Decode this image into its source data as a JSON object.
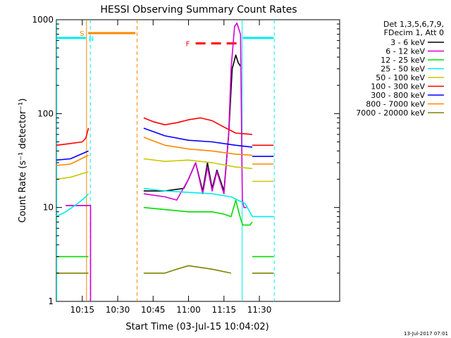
{
  "chart_data": {
    "type": "line",
    "title": "HESSI Observing Summary Count Rates",
    "xlabel": "Start Time (03-Jul-15 10:04:02)",
    "ylabel": "Count Rate (s⁻¹ detector⁻¹)",
    "ylog": true,
    "ylim": [
      1,
      1000
    ],
    "xlim_min": [
      4.03,
      124.0
    ],
    "x_ticks": [
      {
        "t": 15,
        "label": "10:15"
      },
      {
        "t": 30,
        "label": "10:30"
      },
      {
        "t": 45,
        "label": "10:45"
      },
      {
        "t": 60,
        "label": "11:00"
      },
      {
        "t": 75,
        "label": "11:15"
      },
      {
        "t": 90,
        "label": "11:30"
      }
    ],
    "y_ticks": [
      {
        "v": 1,
        "label": "1"
      },
      {
        "v": 10,
        "label": "10"
      },
      {
        "v": 100,
        "label": "100"
      },
      {
        "v": 1000,
        "label": "1000"
      }
    ],
    "legend_header": [
      "Det 1,3,5,6,7,9,",
      "FDecim 1, Att 0"
    ],
    "legend_placement": "right",
    "footer_date": "13-Jul-2017 07:01",
    "series": [
      {
        "name": "3 - 6 keV",
        "color": "#000000",
        "segments": [
          {
            "t": [
              8,
              13,
              17.6
            ],
            "v": [
              10.5,
              10.5,
              10.5
            ]
          },
          {
            "t": [
              41,
              50,
              58,
              60,
              63,
              66,
              68,
              70,
              72,
              75,
              77,
              78.5,
              80,
              81,
              82
            ],
            "v": [
              15,
              15,
              16,
              20,
              30,
              15,
              30,
              16,
              25,
              15,
              60,
              300,
              420,
              350,
              320
            ]
          }
        ]
      },
      {
        "name": "6 - 12 keV",
        "color": "#d400d4",
        "segments": [
          {
            "t": [
              8,
              13,
              16,
              17.6,
              18.5,
              18.5
            ],
            "v": [
              10.5,
              10.5,
              10.5,
              10.5,
              10.5,
              1
            ]
          },
          {
            "t": [
              41,
              50,
              55,
              60,
              63,
              66,
              68,
              70,
              72,
              75,
              77,
              78,
              79.5,
              80.5,
              82,
              82.8,
              83.5,
              84.5
            ],
            "v": [
              14,
              13,
              12,
              20,
              30,
              14,
              27,
              15,
              24,
              14,
              60,
              300,
              850,
              920,
              700,
              12,
              10,
              10
            ]
          }
        ]
      },
      {
        "name": "12 - 25 keV",
        "color": "#00dd00",
        "segments": [
          {
            "t": [
              4,
              10,
              16,
              17.6
            ],
            "v": [
              3,
              3,
              3,
              3
            ]
          },
          {
            "t": [
              41,
              50,
              60,
              70,
              75,
              78,
              80,
              81.5,
              82.5,
              83,
              86,
              87
            ],
            "v": [
              10,
              9.5,
              9,
              9,
              8.5,
              8,
              12,
              8.5,
              7,
              6.5,
              6.5,
              7
            ]
          },
          {
            "t": [
              87,
              90,
              96
            ],
            "v": [
              3,
              3,
              3
            ]
          }
        ]
      },
      {
        "name": "25 - 50 keV",
        "color": "#00eeee",
        "segments": [
          {
            "t": [
              4,
              8,
              13,
              16.5,
              17.6
            ],
            "v": [
              8,
              9,
              11,
              13,
              14
            ]
          },
          {
            "t": [
              41,
              50,
              60,
              70,
              78,
              84,
              87
            ],
            "v": [
              16,
              15,
              14.5,
              14,
              13,
              11,
              8
            ]
          },
          {
            "t": [
              87,
              96
            ],
            "v": [
              8,
              8
            ]
          }
        ]
      },
      {
        "name": "50 - 100 keV",
        "color": "#c8c800",
        "segments": [
          {
            "t": [
              4,
              10,
              17.6
            ],
            "v": [
              20,
              21,
              24
            ]
          },
          {
            "t": [
              41,
              50,
              60,
              70,
              80,
              87
            ],
            "v": [
              33,
              31,
              32,
              30,
              27,
              26
            ]
          },
          {
            "t": [
              87,
              96
            ],
            "v": [
              19,
              19
            ]
          }
        ]
      },
      {
        "name": "100 - 300 keV",
        "color": "#ff0000",
        "segments": [
          {
            "t": [
              4,
              10,
              15,
              16.5,
              17.6
            ],
            "v": [
              46,
              48,
              50,
              55,
              70
            ]
          },
          {
            "t": [
              41,
              45,
              50,
              55,
              60,
              65,
              70,
              75,
              80,
              87
            ],
            "v": [
              90,
              82,
              76,
              80,
              86,
              90,
              84,
              72,
              62,
              60
            ]
          },
          {
            "t": [
              87,
              96
            ],
            "v": [
              46,
              46
            ]
          }
        ]
      },
      {
        "name": "300 - 800 keV",
        "color": "#0000ff",
        "segments": [
          {
            "t": [
              4,
              10,
              17.6
            ],
            "v": [
              32,
              33,
              40
            ]
          },
          {
            "t": [
              41,
              50,
              60,
              70,
              80,
              87
            ],
            "v": [
              70,
              58,
              52,
              50,
              46,
              44
            ]
          },
          {
            "t": [
              87,
              96
            ],
            "v": [
              35,
              35
            ]
          }
        ]
      },
      {
        "name": "800 - 7000 keV",
        "color": "#ff8800",
        "segments": [
          {
            "t": [
              4,
              10,
              17.6
            ],
            "v": [
              28,
              29,
              36
            ]
          },
          {
            "t": [
              41,
              50,
              60,
              70,
              80,
              87
            ],
            "v": [
              56,
              46,
              42,
              40,
              37,
              36
            ]
          },
          {
            "t": [
              87,
              96
            ],
            "v": [
              29,
              29
            ]
          }
        ]
      },
      {
        "name": "7000 - 20000 keV",
        "color": "#808000",
        "segments": [
          {
            "t": [
              4,
              10,
              17.6
            ],
            "v": [
              2,
              2,
              2
            ]
          },
          {
            "t": [
              41,
              50,
              55,
              60,
              65,
              70,
              78
            ],
            "v": [
              2,
              2,
              2.2,
              2.4,
              2.3,
              2.2,
              2
            ]
          },
          {
            "t": [
              87,
              96
            ],
            "v": [
              2,
              2
            ]
          }
        ]
      }
    ],
    "vlines": [
      {
        "t": 4.2,
        "color": "#00eeee",
        "dashed": false
      },
      {
        "t": 16.8,
        "color": "#ff8800",
        "dashed": false
      },
      {
        "t": 18.4,
        "color": "#00eeee",
        "dashed": true
      },
      {
        "t": 38.2,
        "color": "#ff8800",
        "dashed": true
      },
      {
        "t": 82.7,
        "color": "#00eeee",
        "dashed": false
      },
      {
        "t": 96.3,
        "color": "#00eeee",
        "dashed": true
      }
    ],
    "annotations": [
      {
        "label": "S",
        "color": "#ff8800",
        "t0": 17.5,
        "t1": 37.5,
        "v": 720,
        "dashed": false
      },
      {
        "label": "N",
        "color": "#00eeee",
        "t0": 4.3,
        "t1": 16.5,
        "v": 640,
        "dashed": false
      },
      {
        "label": "F",
        "color": "#ff0000",
        "t0": 63.0,
        "t1": 82.0,
        "v": 560,
        "dashed": true
      },
      {
        "label": "",
        "color": "#00eeee",
        "t0": 83.0,
        "t1": 96.0,
        "v": 640,
        "dashed": false
      }
    ]
  }
}
